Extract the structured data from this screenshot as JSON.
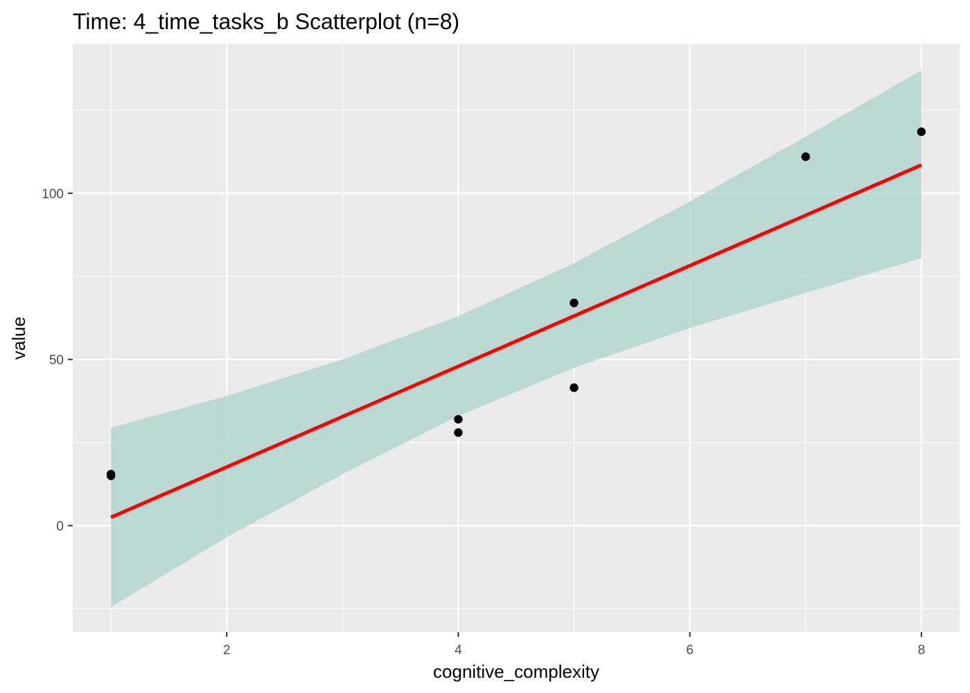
{
  "chart_data": {
    "type": "scatter",
    "title": "Time: 4_time_tasks_b Scatterplot (n=8)",
    "xlabel": "cognitive_complexity",
    "ylabel": "value",
    "xlim": [
      0.67,
      8.33
    ],
    "ylim": [
      -32,
      145
    ],
    "x_ticks": [
      2,
      4,
      6,
      8
    ],
    "y_ticks": [
      0,
      50,
      100
    ],
    "x_tick_labels": [
      "2",
      "4",
      "6",
      "8"
    ],
    "y_tick_labels": [
      "0",
      "50",
      "100"
    ],
    "points": [
      {
        "x": 1,
        "y": 15.5
      },
      {
        "x": 1,
        "y": 15.0
      },
      {
        "x": 4,
        "y": 32.0
      },
      {
        "x": 4,
        "y": 28.0
      },
      {
        "x": 5,
        "y": 67.0
      },
      {
        "x": 5,
        "y": 41.5
      },
      {
        "x": 7,
        "y": 111.0
      },
      {
        "x": 8,
        "y": 118.5
      }
    ],
    "fit_line": {
      "x": [
        1,
        8
      ],
      "y": [
        2.5,
        108.5
      ]
    },
    "confidence_band": {
      "x": [
        1,
        2,
        3,
        4,
        5,
        6,
        7,
        8
      ],
      "lower": [
        -24.5,
        -3.5,
        15.5,
        33.0,
        47.5,
        59.5,
        70.0,
        80.5
      ],
      "upper": [
        29.5,
        39.0,
        50.0,
        63.0,
        79.0,
        97.5,
        117.0,
        137.0
      ]
    },
    "grid": true,
    "legend": "none",
    "colors": {
      "panel": "#ebebeb",
      "grid": "#ffffff",
      "points": "#000000",
      "fit_line": "#ff0000",
      "band": "#a8d0c8"
    }
  }
}
